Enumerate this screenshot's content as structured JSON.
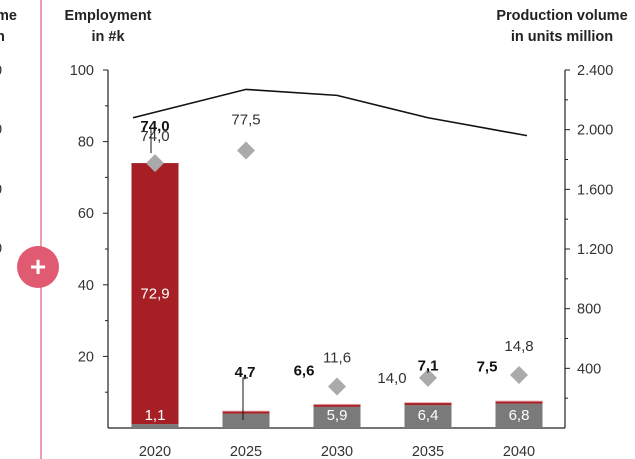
{
  "left_panel": {
    "clipped_title_1": "me",
    "clipped_title_2": "n",
    "clipped_ticks": [
      "0",
      "0",
      "0",
      "0"
    ],
    "add_button": {
      "symbol": "+",
      "color": "#e05a72"
    }
  },
  "chart_data": {
    "type": "bar",
    "categories": [
      "2020",
      "2025",
      "2030",
      "2035",
      "2040"
    ],
    "y_left": {
      "title_line1": "Employment",
      "title_line2": "in #k",
      "lim": [
        0,
        100
      ],
      "ticks": [
        "100",
        "80",
        "60",
        "40",
        "20"
      ],
      "tick_values": [
        100,
        80,
        60,
        40,
        20
      ]
    },
    "y_right": {
      "title_line1": "Production volume",
      "title_line2": "in units million",
      "lim": [
        0,
        2400
      ],
      "ticks": [
        "2.400",
        "2.000",
        "1.600",
        "1.200",
        "800",
        "400"
      ],
      "tick_values": [
        2400,
        2000,
        1600,
        1200,
        800,
        400
      ]
    },
    "stack_bottom": {
      "values": [
        1.1,
        4.0,
        5.9,
        6.4,
        6.8
      ],
      "labels": [
        "1,1",
        "",
        "5,9",
        "6,4",
        "6,8"
      ],
      "color": "#7a7a7a"
    },
    "stack_top": {
      "values": [
        72.9,
        0.7,
        0.7,
        0.7,
        0.7
      ],
      "labels": [
        "72,9",
        "",
        "",
        "",
        ""
      ],
      "color": "#a51f24"
    },
    "totals": {
      "values": [
        74.0,
        4.7,
        6.6,
        7.1,
        7.5
      ],
      "labels": [
        "74,0",
        "4,7",
        "6,6",
        "7,1",
        "7,5"
      ]
    },
    "diamonds": {
      "values": [
        74.0,
        77.5,
        11.6,
        14.0,
        14.8
      ],
      "labels": [
        "74,0",
        "77,5",
        "11,6",
        "14,0",
        "14,8"
      ],
      "color": "#aaaaaa"
    },
    "production_line": {
      "values": [
        2080,
        2270,
        2230,
        2080,
        1960
      ],
      "color": "#111111"
    },
    "grid": false
  }
}
